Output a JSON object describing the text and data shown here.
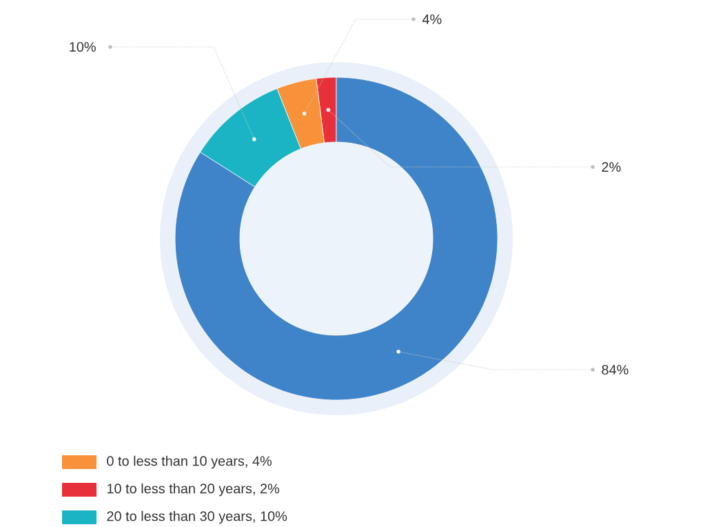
{
  "chart_data": {
    "type": "donut",
    "categories": [
      "0 to less than 10 years, 4%",
      "10 to less than 20 years, 2%",
      "20 to less than 30 years, 10%",
      null
    ],
    "values": [
      4,
      2,
      10,
      84
    ],
    "colors": [
      "#f7923a",
      "#e8303a",
      "#1ab4c4",
      "#3f84c9"
    ],
    "value_labels": [
      "4%",
      "2%",
      "10%",
      "84%"
    ],
    "legend": "bottom left"
  }
}
